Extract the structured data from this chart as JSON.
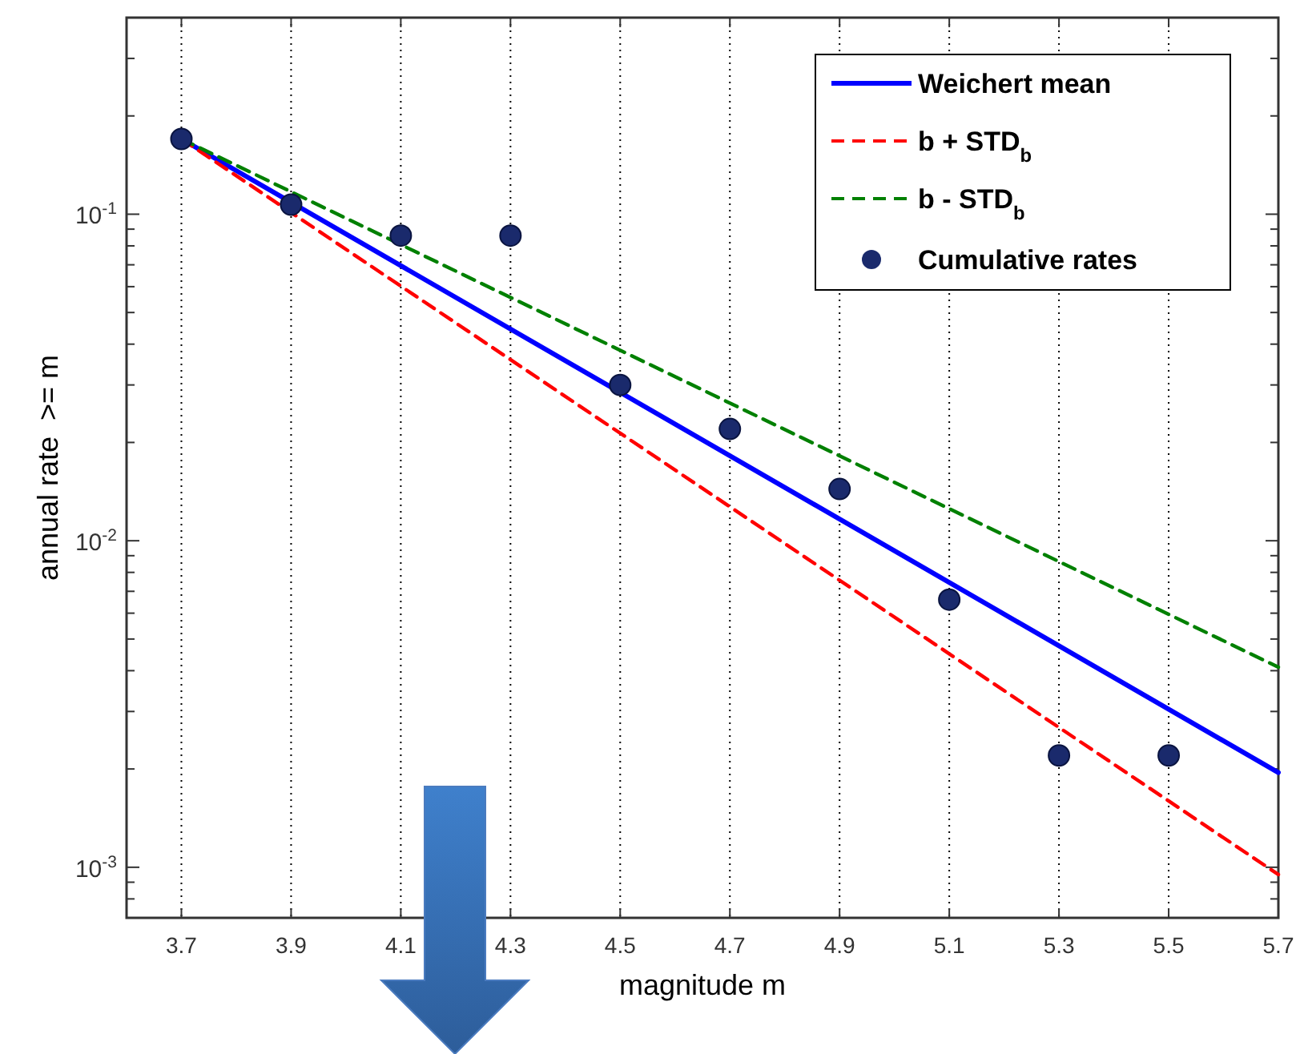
{
  "chart_data": {
    "type": "line",
    "xlabel": "magnitude m",
    "ylabel": "annual rate  >= m",
    "xlim": [
      3.6,
      5.7
    ],
    "xticks": [
      3.7,
      3.9,
      4.1,
      4.3,
      4.5,
      4.7,
      4.9,
      5.1,
      5.3,
      5.5,
      5.7
    ],
    "ylim": [
      0.0007,
      0.4
    ],
    "log": "y",
    "yticks": [
      {
        "value": 0.0007,
        "label": null
      },
      {
        "value": 0.0008,
        "label": null
      },
      {
        "value": 0.0009,
        "label": null
      },
      {
        "value": 0.001,
        "label": "10$^{-3}$"
      },
      {
        "value": 0.002,
        "label": null
      },
      {
        "value": 0.003,
        "label": null
      },
      {
        "value": 0.004,
        "label": null
      },
      {
        "value": 0.005,
        "label": null
      },
      {
        "value": 0.006,
        "label": null
      },
      {
        "value": 0.007,
        "label": null
      },
      {
        "value": 0.008,
        "label": null
      },
      {
        "value": 0.009,
        "label": null
      },
      {
        "value": 0.01,
        "label": "10$^{-2}$"
      },
      {
        "value": 0.02,
        "label": null
      },
      {
        "value": 0.03,
        "label": null
      },
      {
        "value": 0.04,
        "label": null
      },
      {
        "value": 0.05,
        "label": null
      },
      {
        "value": 0.06,
        "label": null
      },
      {
        "value": 0.07,
        "label": null
      },
      {
        "value": 0.08,
        "label": null
      },
      {
        "value": 0.09,
        "label": null
      },
      {
        "value": 0.1,
        "label": "10$^{-1}$"
      },
      {
        "value": 0.2,
        "label": null
      },
      {
        "value": 0.3,
        "label": null
      },
      {
        "value": 0.4,
        "label": null
      }
    ],
    "grid": "x",
    "legend": "top right",
    "series": [
      {
        "name": "Weichert mean",
        "color": "#0000ff",
        "line_style": "solid",
        "x": [
          3.7,
          5.7
        ],
        "values": [
          0.17,
          0.00195
        ]
      },
      {
        "name": "b + STD$_{b}$",
        "color": "#ff0000",
        "line_style": "dashed",
        "x": [
          3.7,
          5.7
        ],
        "values": [
          0.17,
          0.00095
        ]
      },
      {
        "name": "b - STD$_{b}$",
        "color": "#008000",
        "line_style": "dashed",
        "x": [
          3.7,
          5.7
        ],
        "values": [
          0.17,
          0.0041
        ]
      },
      {
        "name": "Cumulative rates",
        "type": "scatter",
        "color": "#1a2a6c",
        "marker": "circle",
        "x": [
          3.7,
          3.9,
          4.1,
          4.3,
          4.5,
          4.7,
          4.9,
          5.1,
          5.3,
          5.5
        ],
        "values": [
          0.17,
          0.107,
          0.086,
          0.086,
          0.03,
          0.022,
          0.0144,
          0.0066,
          0.0022,
          0.0022
        ]
      }
    ]
  }
}
